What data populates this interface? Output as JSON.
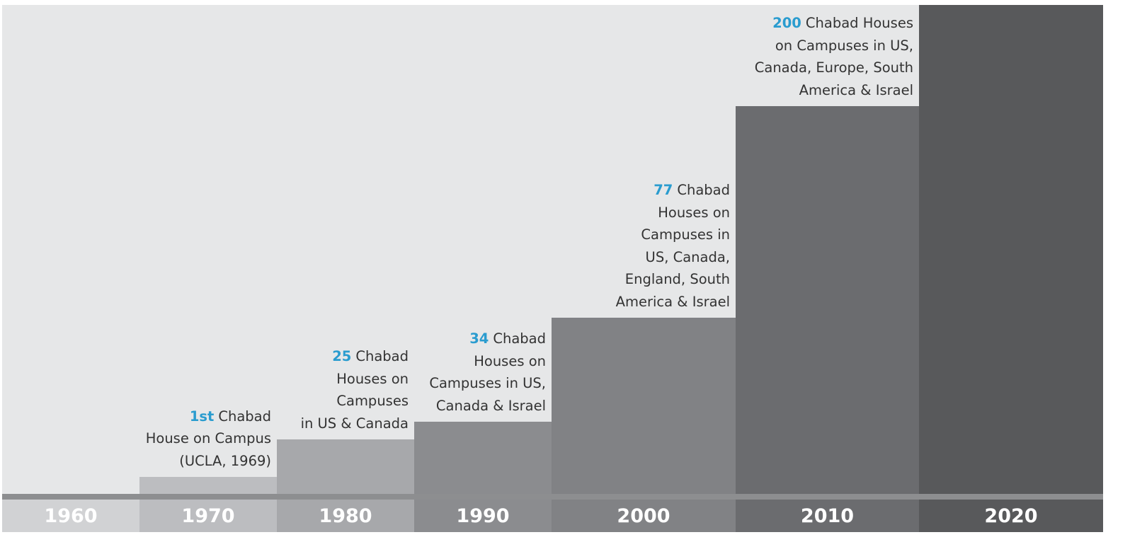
{
  "columns": [
    {
      "year": "1960"
    },
    {
      "year": "1970",
      "annotation": {
        "highlight": "1st",
        "lines": [
          "Chabad",
          "House on Campus",
          "(UCLA, 1969)"
        ]
      }
    },
    {
      "year": "1980",
      "annotation": {
        "highlight": "25",
        "lines": [
          "Chabad",
          "Houses on",
          "Campuses",
          "in US & Canada"
        ]
      }
    },
    {
      "year": "1990",
      "annotation": {
        "highlight": "34",
        "lines": [
          "Chabad",
          "Houses on",
          "Campuses in US,",
          "Canada & Israel"
        ]
      }
    },
    {
      "year": "2000",
      "annotation": {
        "highlight": "77",
        "lines": [
          "Chabad",
          "Houses on",
          "Campuses in",
          "US, Canada,",
          "England, South",
          "America & Israel"
        ]
      }
    },
    {
      "year": "2010",
      "annotation": {
        "highlight": "200",
        "lines": [
          "Chabad Houses",
          "on Campuses in US,",
          "Canada, Europe, South",
          "America & Israel"
        ]
      }
    },
    {
      "year": "2020"
    }
  ]
}
